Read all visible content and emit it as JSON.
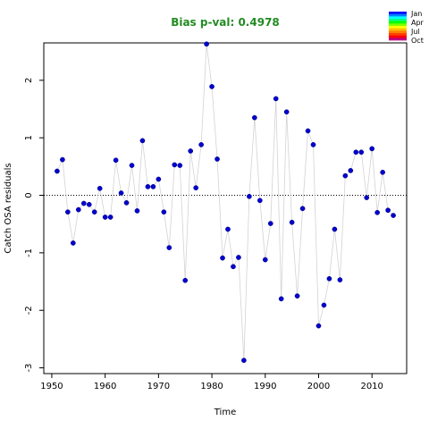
{
  "chart_data": {
    "type": "scatter",
    "title": "Bias p-val: 0.4978",
    "title_color": "#228B22",
    "xlabel": "Time",
    "ylabel": "Catch OSA residuals",
    "xlim": [
      1948.5,
      2016.5
    ],
    "ylim": [
      -3.1,
      2.65
    ],
    "x_ticks": [
      1950,
      1960,
      1970,
      1980,
      1990,
      2000,
      2010
    ],
    "y_ticks": [
      -3,
      -2,
      -1,
      0,
      1,
      2
    ],
    "reference_line": 0,
    "point_color": "#0000CD",
    "line_color": "#d3d3d3",
    "x": [
      1951,
      1952,
      1953,
      1954,
      1955,
      1956,
      1957,
      1958,
      1959,
      1960,
      1961,
      1962,
      1963,
      1964,
      1965,
      1966,
      1967,
      1968,
      1969,
      1970,
      1971,
      1972,
      1973,
      1974,
      1975,
      1976,
      1977,
      1978,
      1979,
      1980,
      1981,
      1982,
      1983,
      1984,
      1985,
      1986,
      1987,
      1988,
      1989,
      1990,
      1991,
      1992,
      1993,
      1994,
      1995,
      1996,
      1997,
      1998,
      1999,
      2000,
      2001,
      2002,
      2003,
      2004,
      2005,
      2006,
      2007,
      2008,
      2009,
      2010,
      2011,
      2012,
      2013,
      2014
    ],
    "y": [
      0.42,
      0.62,
      -0.29,
      -0.83,
      -0.25,
      -0.14,
      -0.16,
      -0.29,
      0.12,
      -0.38,
      -0.38,
      0.61,
      0.04,
      -0.13,
      0.52,
      -0.27,
      0.95,
      0.15,
      0.15,
      0.28,
      -0.29,
      -0.91,
      0.53,
      0.52,
      -1.48,
      0.77,
      0.13,
      0.88,
      2.63,
      1.89,
      0.63,
      -1.09,
      -0.59,
      -1.24,
      -1.08,
      -2.87,
      -0.02,
      1.35,
      -0.09,
      -1.12,
      -0.49,
      1.68,
      -1.8,
      1.45,
      -0.47,
      -1.75,
      -0.23,
      1.12,
      0.88,
      -2.27,
      -1.91,
      -1.45,
      -0.59,
      -1.47,
      0.34,
      0.43,
      0.75,
      0.75,
      -0.04,
      0.81,
      -0.3,
      0.4,
      -0.26,
      -0.35
    ],
    "legend": {
      "labels": [
        "Jan",
        "Apr",
        "Jul",
        "Oct"
      ],
      "colors": [
        "#0000FF",
        "#0080FF",
        "#00FFFF",
        "#00FF80",
        "#00FF00",
        "#80FF00",
        "#FFFF00",
        "#FFC000",
        "#FF8000",
        "#FF4000",
        "#FF0000",
        "#C00080"
      ]
    }
  }
}
